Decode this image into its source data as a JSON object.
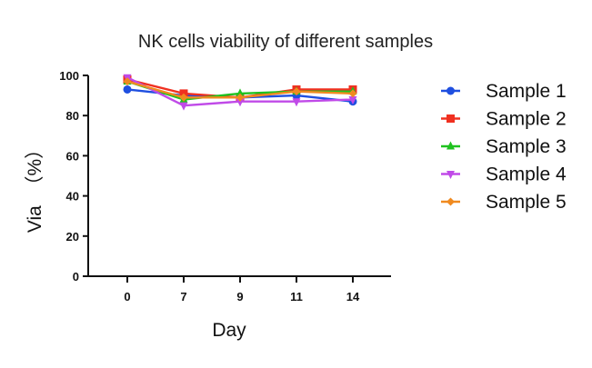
{
  "chart_data": {
    "type": "line",
    "title": "NK cells viability of different samples",
    "xlabel": "Day",
    "ylabel": "Via  （%）",
    "categories": [
      "0",
      "7",
      "9",
      "11",
      "14"
    ],
    "ylim": [
      0,
      100
    ],
    "yticks": [
      0,
      20,
      40,
      60,
      80,
      100
    ],
    "grid": false,
    "legend_position": "right",
    "series": [
      {
        "name": "Sample 1",
        "color": "#1f4fe0",
        "marker": "circle",
        "values": [
          93,
          90,
          89,
          90,
          87
        ]
      },
      {
        "name": "Sample 2",
        "color": "#f03020",
        "marker": "square",
        "values": [
          98,
          91,
          89,
          93,
          93
        ]
      },
      {
        "name": "Sample 3",
        "color": "#1fc21f",
        "marker": "triangle-up",
        "values": [
          97,
          88,
          91,
          92,
          92
        ]
      },
      {
        "name": "Sample 4",
        "color": "#c04ae8",
        "marker": "triangle-down",
        "values": [
          99,
          85,
          87,
          87,
          88
        ]
      },
      {
        "name": "Sample 5",
        "color": "#f08a20",
        "marker": "diamond",
        "values": [
          97,
          89,
          89,
          92,
          91
        ]
      }
    ]
  }
}
